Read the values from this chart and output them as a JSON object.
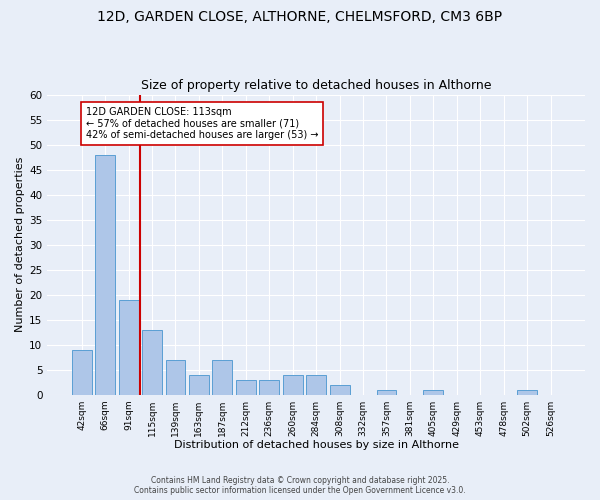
{
  "title1": "12D, GARDEN CLOSE, ALTHORNE, CHELMSFORD, CM3 6BP",
  "title2": "Size of property relative to detached houses in Althorne",
  "xlabel": "Distribution of detached houses by size in Althorne",
  "ylabel": "Number of detached properties",
  "bar_labels": [
    "42sqm",
    "66sqm",
    "91sqm",
    "115sqm",
    "139sqm",
    "163sqm",
    "187sqm",
    "212sqm",
    "236sqm",
    "260sqm",
    "284sqm",
    "308sqm",
    "332sqm",
    "357sqm",
    "381sqm",
    "405sqm",
    "429sqm",
    "453sqm",
    "478sqm",
    "502sqm",
    "526sqm"
  ],
  "bar_values": [
    9,
    48,
    19,
    13,
    7,
    4,
    7,
    3,
    3,
    4,
    4,
    2,
    0,
    1,
    0,
    1,
    0,
    0,
    0,
    1,
    0
  ],
  "bar_color": "#aec6e8",
  "bar_edge_color": "#5a9fd4",
  "vline_x_index": 2.5,
  "vline_color": "#cc0000",
  "annotation_text": "12D GARDEN CLOSE: 113sqm\n← 57% of detached houses are smaller (71)\n42% of semi-detached houses are larger (53) →",
  "annotation_box_color": "#ffffff",
  "annotation_box_edge": "#cc0000",
  "bg_color": "#e8eef8",
  "grid_color": "#ffffff",
  "ylim": [
    0,
    60
  ],
  "yticks": [
    0,
    5,
    10,
    15,
    20,
    25,
    30,
    35,
    40,
    45,
    50,
    55,
    60
  ],
  "title_fontsize": 10,
  "subtitle_fontsize": 9,
  "footer_line1": "Contains HM Land Registry data © Crown copyright and database right 2025.",
  "footer_line2": "Contains public sector information licensed under the Open Government Licence v3.0."
}
